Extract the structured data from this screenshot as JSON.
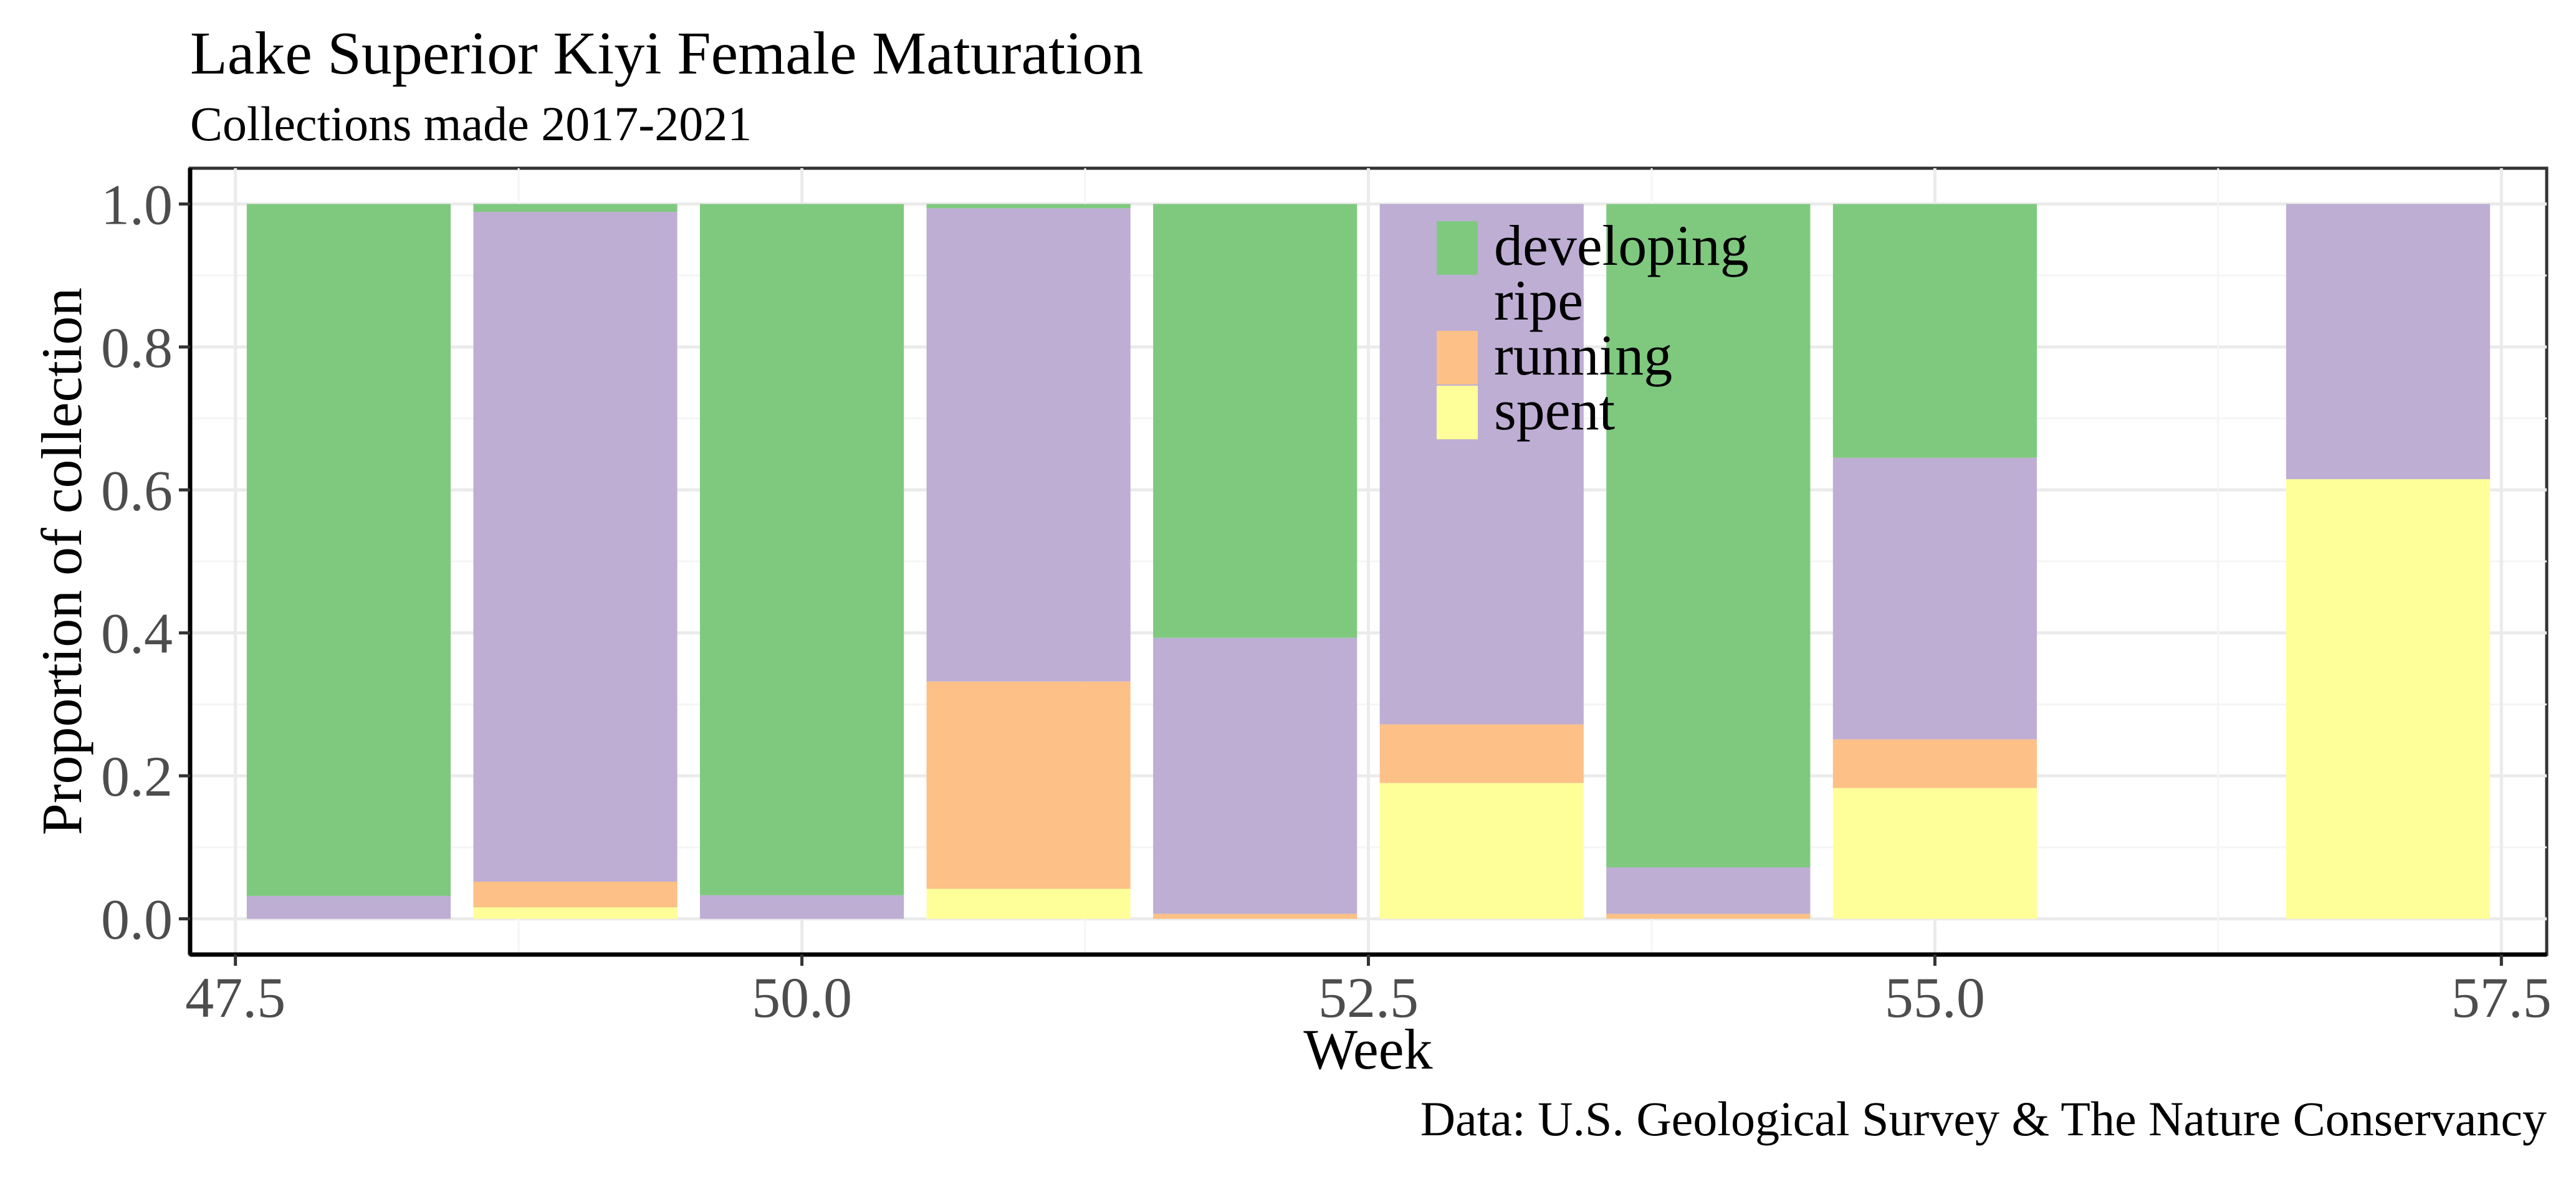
{
  "chart_data": {
    "type": "bar",
    "stacked": true,
    "title": "Lake Superior Kiyi Female Maturation",
    "subtitle": "Collections made 2017-2021",
    "xlabel": "Week",
    "ylabel": "Proportion of collection",
    "caption": "Data: U.S. Geological Survey & The Nature Conservancy",
    "xlim": [
      47.3,
      57.7
    ],
    "ylim": [
      -0.05,
      1.05
    ],
    "x_ticks": [
      47.5,
      50.0,
      52.5,
      55.0,
      57.5
    ],
    "x_tick_labels": [
      "47.5",
      "50.0",
      "52.5",
      "55.0",
      "57.5"
    ],
    "y_ticks": [
      0,
      0.2,
      0.4,
      0.6,
      0.8,
      1.0
    ],
    "y_tick_labels": [
      "0.0",
      "0.2",
      "0.4",
      "0.6",
      "0.8",
      "1.0"
    ],
    "bar_width": 0.9,
    "grid": true,
    "legend_position": "top-center-inside",
    "x": [
      48,
      49,
      50,
      51,
      52,
      53,
      54,
      55,
      57
    ],
    "series": [
      {
        "name": "spent",
        "color": "#ffff99",
        "values": [
          0.0,
          0.016,
          0.0,
          0.042,
          0.0,
          0.19,
          0.0,
          0.183,
          0.615
        ]
      },
      {
        "name": "running",
        "color": "#fdc086",
        "values": [
          0.0,
          0.036,
          0.0,
          0.29,
          0.007,
          0.082,
          0.007,
          0.068,
          0.0
        ]
      },
      {
        "name": "ripe",
        "color": "#beaed4",
        "values": [
          0.032,
          0.937,
          0.033,
          0.662,
          0.386,
          0.728,
          0.065,
          0.394,
          0.385
        ]
      },
      {
        "name": "developing",
        "color": "#7fc97f",
        "values": [
          0.968,
          0.011,
          0.967,
          0.006,
          0.607,
          0.0,
          0.928,
          0.355,
          0.0
        ]
      }
    ],
    "legend_order": [
      "developing",
      "ripe",
      "running",
      "spent"
    ]
  }
}
